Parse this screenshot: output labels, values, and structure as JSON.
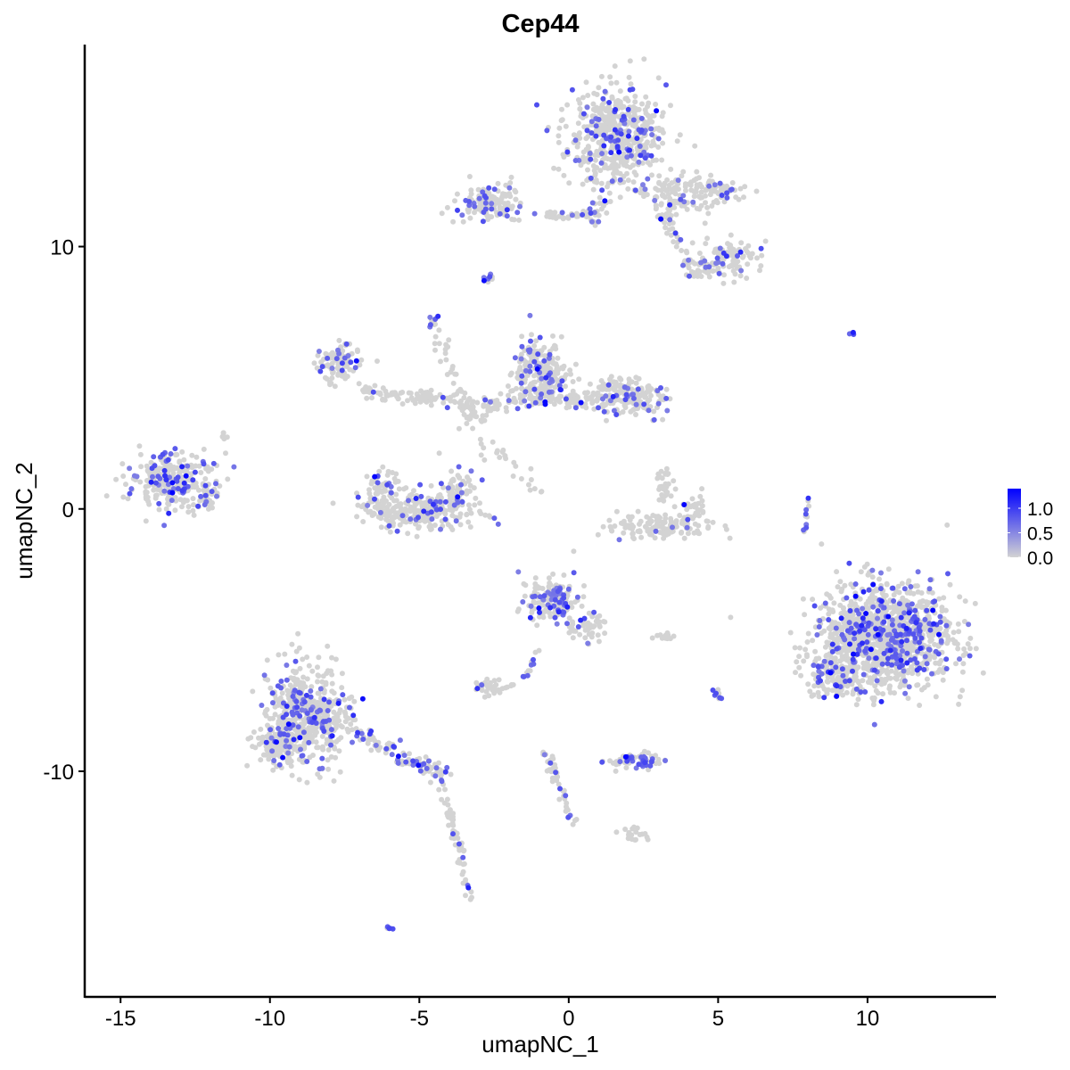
{
  "chart_data": {
    "type": "scatter",
    "title": "Cep44",
    "xlabel": "umapNC_1",
    "ylabel": "umapNC_2",
    "xlim": [
      -16.2,
      14.3
    ],
    "ylim": [
      -18.6,
      17.7
    ],
    "xticks": [
      -15,
      -10,
      -5,
      0,
      5,
      10
    ],
    "yticks": [
      -10,
      0,
      10
    ],
    "xtick_labels": [
      "-15",
      "-10",
      "-5",
      "0",
      "5",
      "10"
    ],
    "ytick_labels": [
      "-10",
      "0",
      "10"
    ],
    "grid": false,
    "legend": {
      "position": "right",
      "type": "colorbar",
      "range": [
        0,
        1.4
      ],
      "ticks": [
        1.0,
        0.5,
        0.0
      ],
      "tick_labels": [
        "1.0",
        "0.5",
        "0.0"
      ],
      "low_color": "#D3D3D3",
      "high_color": "#0000FF"
    },
    "clusters": [
      {
        "x": 1.6,
        "y": 14.2,
        "sx": 1.0,
        "sy": 1.2,
        "n": 520,
        "frac": 0.16
      },
      {
        "x": 3.6,
        "y": 12.0,
        "sx": 0.9,
        "sy": 0.5,
        "n": 120,
        "frac": 0.12
      },
      {
        "x": 5.2,
        "y": 12.1,
        "sx": 0.6,
        "sy": 0.3,
        "n": 50,
        "frac": 0.1
      },
      {
        "x": 5.4,
        "y": 9.6,
        "sx": 0.6,
        "sy": 0.4,
        "n": 80,
        "frac": 0.12
      },
      {
        "x": 4.5,
        "y": 9.2,
        "sx": 0.5,
        "sy": 0.3,
        "n": 40,
        "frac": 0.15
      },
      {
        "x": -2.6,
        "y": 11.6,
        "sx": 0.7,
        "sy": 0.4,
        "n": 130,
        "frac": 0.18
      },
      {
        "x": 0.9,
        "y": 11.4,
        "sx": 0.3,
        "sy": 0.3,
        "n": 25,
        "frac": 0.1
      },
      {
        "x": -13.3,
        "y": 1.1,
        "sx": 0.9,
        "sy": 0.65,
        "n": 260,
        "frac": 0.22
      },
      {
        "x": -12.3,
        "y": 0.4,
        "sx": 0.4,
        "sy": 0.3,
        "n": 40,
        "frac": 0.1
      },
      {
        "x": -5.0,
        "y": -0.1,
        "sx": 1.2,
        "sy": 0.45,
        "n": 260,
        "frac": 0.14
      },
      {
        "x": -6.2,
        "y": 0.6,
        "sx": 0.4,
        "sy": 0.5,
        "n": 60,
        "frac": 0.15
      },
      {
        "x": -3.7,
        "y": 0.7,
        "sx": 0.4,
        "sy": 0.5,
        "n": 60,
        "frac": 0.12
      },
      {
        "x": -7.7,
        "y": 5.6,
        "sx": 0.45,
        "sy": 0.5,
        "n": 90,
        "frac": 0.18
      },
      {
        "x": -1.0,
        "y": 5.1,
        "sx": 0.65,
        "sy": 0.75,
        "n": 260,
        "frac": 0.18
      },
      {
        "x": 2.0,
        "y": 4.3,
        "sx": 0.7,
        "sy": 0.5,
        "n": 170,
        "frac": 0.15
      },
      {
        "x": 0.4,
        "y": 4.2,
        "sx": 0.6,
        "sy": 0.25,
        "n": 60,
        "frac": 0.05
      },
      {
        "x": 3.0,
        "y": -0.7,
        "sx": 1.1,
        "sy": 0.25,
        "n": 130,
        "frac": 0.04
      },
      {
        "x": 4.1,
        "y": -0.1,
        "sx": 0.3,
        "sy": 0.4,
        "n": 30,
        "frac": 0.05
      },
      {
        "x": 3.2,
        "y": 0.9,
        "sx": 0.2,
        "sy": 0.5,
        "n": 30,
        "frac": 0.05
      },
      {
        "x": 10.6,
        "y": -4.9,
        "sx": 1.35,
        "sy": 1.25,
        "n": 1250,
        "frac": 0.18
      },
      {
        "x": 8.8,
        "y": -6.4,
        "sx": 0.5,
        "sy": 0.5,
        "n": 120,
        "frac": 0.2
      },
      {
        "x": -8.8,
        "y": -7.8,
        "sx": 0.8,
        "sy": 1.15,
        "n": 520,
        "frac": 0.2
      },
      {
        "x": -9.8,
        "y": -9.0,
        "sx": 0.5,
        "sy": 0.5,
        "n": 100,
        "frac": 0.15
      },
      {
        "x": -0.6,
        "y": -3.5,
        "sx": 0.5,
        "sy": 0.55,
        "n": 170,
        "frac": 0.28
      },
      {
        "x": 0.6,
        "y": -4.5,
        "sx": 0.4,
        "sy": 0.4,
        "n": 50,
        "frac": 0.2
      },
      {
        "x": 2.2,
        "y": -9.6,
        "sx": 0.6,
        "sy": 0.2,
        "n": 60,
        "frac": 0.35
      },
      {
        "x": -2.6,
        "y": -6.8,
        "sx": 0.35,
        "sy": 0.2,
        "n": 40,
        "frac": 0.1
      },
      {
        "x": 5.0,
        "y": -7.1,
        "sx": 0.1,
        "sy": 0.2,
        "n": 8,
        "frac": 0.4
      },
      {
        "x": -2.7,
        "y": 8.8,
        "sx": 0.15,
        "sy": 0.15,
        "n": 10,
        "frac": 0.3
      },
      {
        "x": -4.5,
        "y": 7.2,
        "sx": 0.15,
        "sy": 0.25,
        "n": 12,
        "frac": 0.4
      },
      {
        "x": 9.5,
        "y": 6.7,
        "sx": 0.1,
        "sy": 0.05,
        "n": 4,
        "frac": 0.5
      },
      {
        "x": -6.0,
        "y": -16.0,
        "sx": 0.1,
        "sy": 0.05,
        "n": 5,
        "frac": 0.8
      },
      {
        "x": -11.5,
        "y": 2.7,
        "sx": 0.1,
        "sy": 0.15,
        "n": 6,
        "frac": 0.2
      },
      {
        "x": 3.1,
        "y": -4.9,
        "sx": 0.3,
        "sy": 0.1,
        "n": 12,
        "frac": 0.0
      },
      {
        "x": 2.3,
        "y": -12.4,
        "sx": 0.35,
        "sy": 0.15,
        "n": 20,
        "frac": 0.0
      }
    ],
    "strands": [
      {
        "from": [
          -0.8,
          11.2
        ],
        "to": [
          1.0,
          11.2
        ],
        "n": 40,
        "w": 0.15,
        "frac": 0.05
      },
      {
        "from": [
          3.0,
          11.5
        ],
        "to": [
          4.3,
          8.8
        ],
        "n": 40,
        "w": 0.2,
        "frac": 0.1
      },
      {
        "from": [
          -7.0,
          4.5
        ],
        "to": [
          -2.5,
          4.0
        ],
        "n": 110,
        "w": 0.25,
        "frac": 0.08
      },
      {
        "from": [
          -4.3,
          6.5
        ],
        "to": [
          -3.0,
          2.0
        ],
        "n": 40,
        "w": 0.35,
        "frac": 0.05
      },
      {
        "from": [
          -3.5,
          3.5
        ],
        "to": [
          -0.5,
          4.5
        ],
        "n": 50,
        "w": 0.35,
        "frac": 0.05
      },
      {
        "from": [
          -2.5,
          2.5
        ],
        "to": [
          -1.0,
          0.5
        ],
        "n": 20,
        "w": 0.25,
        "frac": 0.0
      },
      {
        "from": [
          -7.3,
          -8.4
        ],
        "to": [
          -4.0,
          -10.3
        ],
        "n": 110,
        "w": 0.35,
        "frac": 0.25
      },
      {
        "from": [
          -4.2,
          -10.6
        ],
        "to": [
          -3.3,
          -14.8
        ],
        "n": 60,
        "w": 0.2,
        "frac": 0.08
      },
      {
        "from": [
          -0.8,
          -9.3
        ],
        "to": [
          0.2,
          -12.0
        ],
        "n": 50,
        "w": 0.15,
        "frac": 0.1
      },
      {
        "from": [
          -1.5,
          -6.5
        ],
        "to": [
          -1.0,
          -5.3
        ],
        "n": 12,
        "w": 0.1,
        "frac": 0.6
      },
      {
        "from": [
          7.8,
          -1.3
        ],
        "to": [
          8.2,
          1.0
        ],
        "n": 12,
        "w": 0.1,
        "frac": 0.3
      }
    ]
  }
}
